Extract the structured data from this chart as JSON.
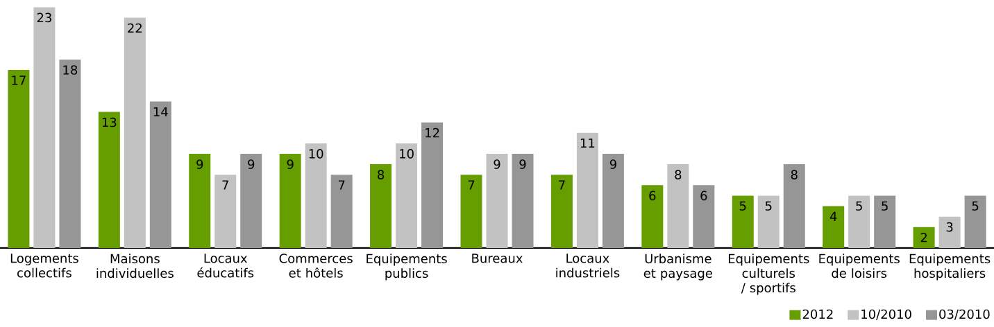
{
  "chart_data": {
    "type": "bar",
    "categories": [
      "Logements collectifs",
      "Maisons individuelles",
      "Locaux éducatifs",
      "Commerces et hôtels",
      "Equipements publics",
      "Bureaux",
      "Locaux industriels",
      "Urbanisme et paysage",
      "Equipements culturels / sportifs",
      "Equipements de loisirs",
      "Equipements hospitaliers"
    ],
    "series": [
      {
        "name": "2012",
        "color": "#669e00",
        "values": [
          17,
          13,
          9,
          9,
          8,
          7,
          7,
          6,
          5,
          4,
          2
        ]
      },
      {
        "name": "10/2010",
        "color": "#c2c2c2",
        "values": [
          23,
          22,
          7,
          10,
          10,
          9,
          11,
          8,
          5,
          5,
          3
        ]
      },
      {
        "name": "03/2010",
        "color": "#969696",
        "values": [
          18,
          14,
          9,
          7,
          12,
          9,
          9,
          6,
          8,
          5,
          5
        ]
      }
    ],
    "data_labels": true,
    "legend": "bottom right"
  }
}
